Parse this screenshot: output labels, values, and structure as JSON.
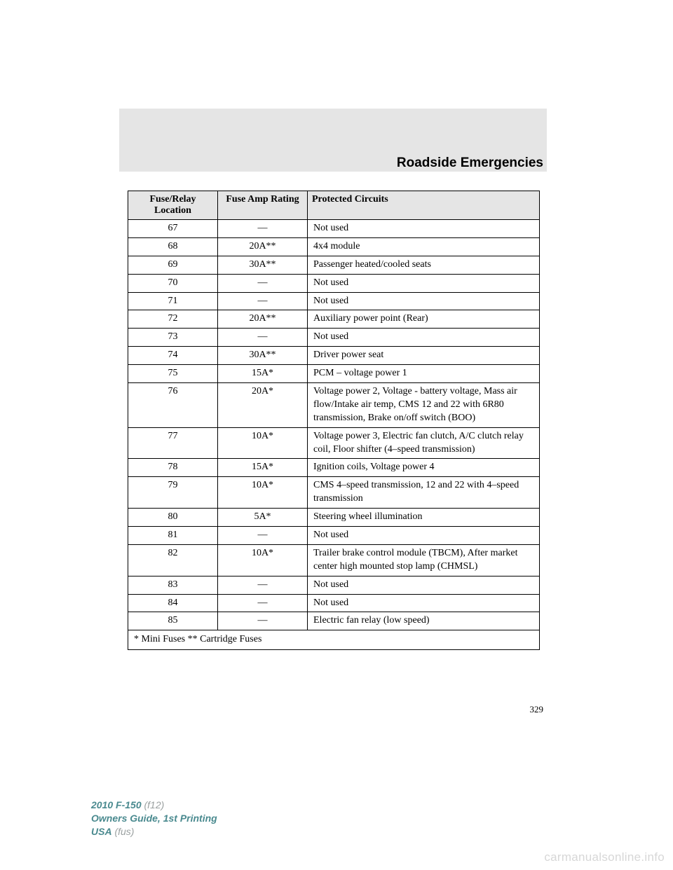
{
  "section_title": "Roadside Emergencies",
  "table": {
    "headers": [
      "Fuse/Relay Location",
      "Fuse Amp Rating",
      "Protected Circuits"
    ],
    "rows": [
      {
        "loc": "67",
        "amp": "—",
        "circ": "Not used"
      },
      {
        "loc": "68",
        "amp": "20A**",
        "circ": "4x4 module"
      },
      {
        "loc": "69",
        "amp": "30A**",
        "circ": "Passenger heated/cooled seats"
      },
      {
        "loc": "70",
        "amp": "—",
        "circ": "Not used"
      },
      {
        "loc": "71",
        "amp": "—",
        "circ": "Not used"
      },
      {
        "loc": "72",
        "amp": "20A**",
        "circ": "Auxiliary power point (Rear)"
      },
      {
        "loc": "73",
        "amp": "—",
        "circ": "Not used"
      },
      {
        "loc": "74",
        "amp": "30A**",
        "circ": "Driver power seat"
      },
      {
        "loc": "75",
        "amp": "15A*",
        "circ": "PCM – voltage power 1"
      },
      {
        "loc": "76",
        "amp": "20A*",
        "circ": "Voltage power 2, Voltage - battery voltage, Mass air flow/Intake air temp, CMS 12 and 22 with 6R80 transmission, Brake on/off switch (BOO)"
      },
      {
        "loc": "77",
        "amp": "10A*",
        "circ": "Voltage power 3, Electric fan clutch, A/C clutch relay coil, Floor shifter (4–speed transmission)"
      },
      {
        "loc": "78",
        "amp": "15A*",
        "circ": "Ignition coils, Voltage power 4"
      },
      {
        "loc": "79",
        "amp": "10A*",
        "circ": "CMS 4–speed transmission, 12 and 22 with 4–speed transmission"
      },
      {
        "loc": "80",
        "amp": "5A*",
        "circ": "Steering wheel illumination"
      },
      {
        "loc": "81",
        "amp": "—",
        "circ": "Not used"
      },
      {
        "loc": "82",
        "amp": "10A*",
        "circ": "Trailer brake control module (TBCM), After market center high mounted stop lamp (CHMSL)"
      },
      {
        "loc": "83",
        "amp": "—",
        "circ": "Not used"
      },
      {
        "loc": "84",
        "amp": "—",
        "circ": "Not used"
      },
      {
        "loc": "85",
        "amp": "—",
        "circ": "Electric fan relay (low speed)"
      }
    ],
    "footnote": "* Mini Fuses ** Cartridge Fuses"
  },
  "page_number": "329",
  "footer": {
    "model": "2010 F-150",
    "model_code": "(f12)",
    "guide": "Owners Guide, 1st Printing",
    "region": "USA",
    "region_code": "(fus)"
  },
  "watermark": "carmanualsonline.info"
}
